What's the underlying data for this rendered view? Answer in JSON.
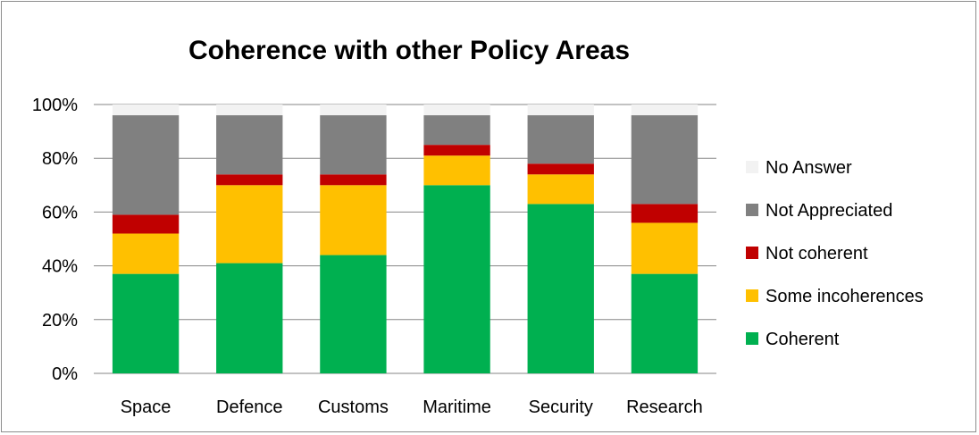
{
  "chart_data": {
    "type": "bar",
    "stacked": true,
    "title": "Coherence with other Policy Areas",
    "categories": [
      "Space",
      "Defence",
      "Customs",
      "Maritime",
      "Security",
      "Research"
    ],
    "series": [
      {
        "name": "Coherent",
        "color": "#00b050",
        "values": [
          37,
          41,
          44,
          70,
          63,
          37
        ]
      },
      {
        "name": "Some incoherences",
        "color": "#ffc000",
        "values": [
          15,
          29,
          26,
          11,
          11,
          19
        ]
      },
      {
        "name": "Not coherent",
        "color": "#c00000",
        "values": [
          7,
          4,
          4,
          4,
          4,
          7
        ]
      },
      {
        "name": "Not Appreciated",
        "color": "#808080",
        "values": [
          37,
          22,
          22,
          11,
          18,
          33
        ]
      },
      {
        "name": "No Answer",
        "color": "#f2f2f2",
        "values": [
          4,
          4,
          4,
          4,
          4,
          4
        ]
      }
    ],
    "y_ticks": [
      "0%",
      "20%",
      "40%",
      "60%",
      "80%",
      "100%"
    ],
    "ylim": [
      0,
      100
    ],
    "legend_position": "right",
    "legend_order": [
      "No Answer",
      "Not Appreciated",
      "Not coherent",
      "Some incoherences",
      "Coherent"
    ],
    "grid": true
  }
}
